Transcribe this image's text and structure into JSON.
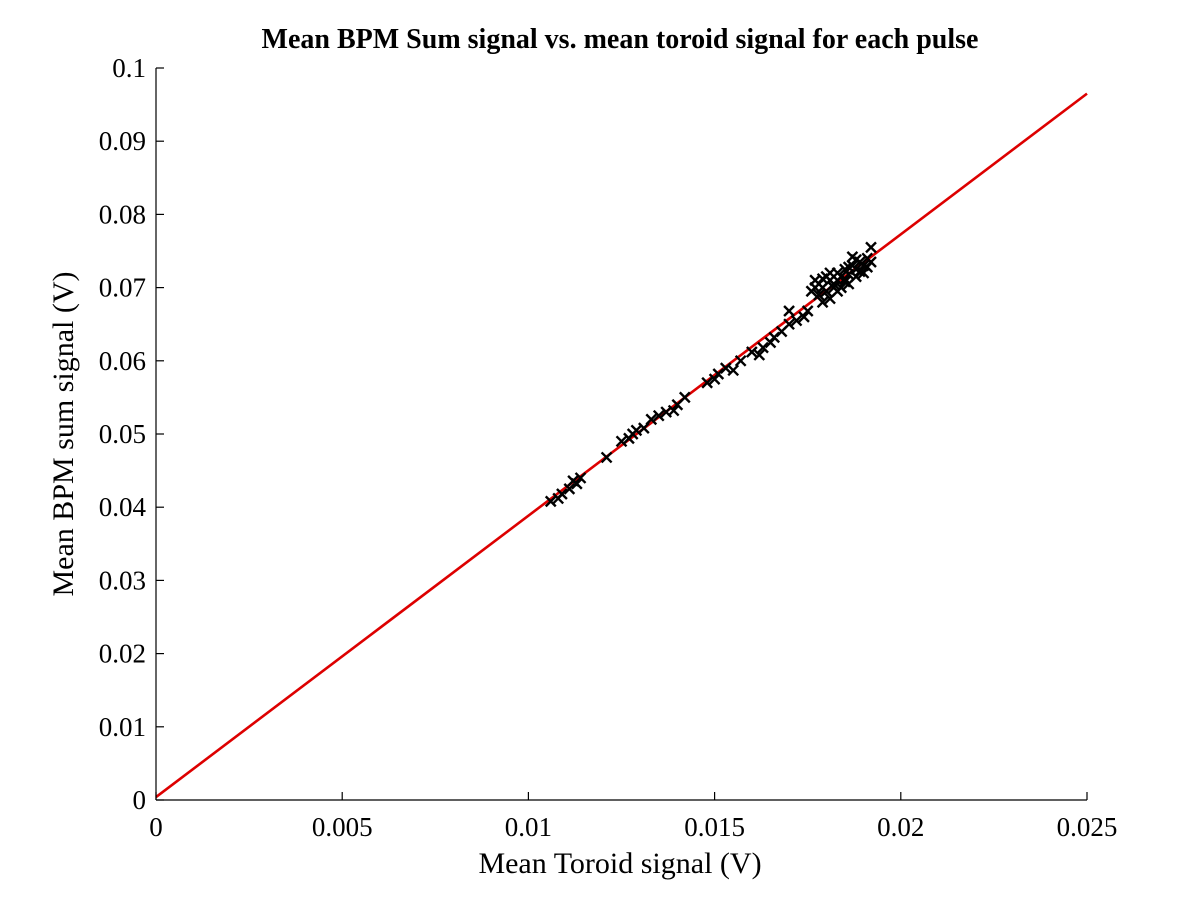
{
  "chart_data": {
    "type": "scatter",
    "title": "Mean BPM Sum signal vs. mean toroid signal for each pulse",
    "xlabel": "Mean Toroid signal (V)",
    "ylabel": "Mean BPM sum signal (V)",
    "xlim": [
      0,
      0.025
    ],
    "ylim": [
      0,
      0.1
    ],
    "xticks": [
      0,
      0.005,
      0.01,
      0.015,
      0.02,
      0.025
    ],
    "xtick_labels": [
      "0",
      "0.005",
      "0.01",
      "0.015",
      "0.02",
      "0.025"
    ],
    "yticks": [
      0,
      0.01,
      0.02,
      0.03,
      0.04,
      0.05,
      0.06,
      0.07,
      0.08,
      0.09,
      0.1
    ],
    "ytick_labels": [
      "0",
      "0.01",
      "0.02",
      "0.03",
      "0.04",
      "0.05",
      "0.06",
      "0.07",
      "0.08",
      "0.09",
      "0.1"
    ],
    "grid": false,
    "marker": "x",
    "colors": {
      "points": "#000000",
      "fit_line": "#dd0000",
      "axes": "#000000"
    },
    "series": [
      {
        "type": "scatter",
        "points": [
          [
            0.0106,
            0.0408
          ],
          [
            0.0108,
            0.0412
          ],
          [
            0.0109,
            0.0418
          ],
          [
            0.0111,
            0.0425
          ],
          [
            0.0113,
            0.0432
          ],
          [
            0.0114,
            0.044
          ],
          [
            0.0112,
            0.0436
          ],
          [
            0.0121,
            0.0468
          ],
          [
            0.0125,
            0.049
          ],
          [
            0.0127,
            0.0494
          ],
          [
            0.0128,
            0.05
          ],
          [
            0.0129,
            0.0505
          ],
          [
            0.0131,
            0.0508
          ],
          [
            0.0133,
            0.052
          ],
          [
            0.0135,
            0.0525
          ],
          [
            0.0137,
            0.053
          ],
          [
            0.0139,
            0.0532
          ],
          [
            0.014,
            0.054
          ],
          [
            0.0142,
            0.055
          ],
          [
            0.0148,
            0.057
          ],
          [
            0.015,
            0.0575
          ],
          [
            0.0151,
            0.0582
          ],
          [
            0.0153,
            0.059
          ],
          [
            0.0155,
            0.0587
          ],
          [
            0.0157,
            0.06
          ],
          [
            0.016,
            0.0612
          ],
          [
            0.0162,
            0.0608
          ],
          [
            0.0163,
            0.0618
          ],
          [
            0.0165,
            0.0625
          ],
          [
            0.0166,
            0.0632
          ],
          [
            0.0168,
            0.064
          ],
          [
            0.017,
            0.065
          ],
          [
            0.017,
            0.0668
          ],
          [
            0.0172,
            0.0655
          ],
          [
            0.0174,
            0.066
          ],
          [
            0.0175,
            0.0668
          ],
          [
            0.0176,
            0.0695
          ],
          [
            0.0177,
            0.07
          ],
          [
            0.0177,
            0.071
          ],
          [
            0.0178,
            0.069
          ],
          [
            0.0178,
            0.0705
          ],
          [
            0.0179,
            0.068
          ],
          [
            0.0179,
            0.07
          ],
          [
            0.018,
            0.0715
          ],
          [
            0.018,
            0.0695
          ],
          [
            0.0181,
            0.071
          ],
          [
            0.0181,
            0.0685
          ],
          [
            0.0182,
            0.07
          ],
          [
            0.0182,
            0.0705
          ],
          [
            0.0183,
            0.071
          ],
          [
            0.0183,
            0.072
          ],
          [
            0.0184,
            0.07
          ],
          [
            0.0184,
            0.0715
          ],
          [
            0.0185,
            0.0712
          ],
          [
            0.0185,
            0.0725
          ],
          [
            0.0186,
            0.0718
          ],
          [
            0.0186,
            0.0705
          ],
          [
            0.0187,
            0.073
          ],
          [
            0.0187,
            0.0742
          ],
          [
            0.0188,
            0.0715
          ],
          [
            0.0188,
            0.0725
          ],
          [
            0.0189,
            0.0722
          ],
          [
            0.0189,
            0.0735
          ],
          [
            0.019,
            0.073
          ],
          [
            0.019,
            0.072
          ],
          [
            0.0191,
            0.0728
          ],
          [
            0.0191,
            0.074
          ],
          [
            0.0192,
            0.0735
          ],
          [
            0.0192,
            0.0755
          ],
          [
            0.0183,
            0.0695
          ],
          [
            0.0181,
            0.072
          ],
          [
            0.0185,
            0.0708
          ],
          [
            0.0188,
            0.0738
          ],
          [
            0.0179,
            0.0712
          ],
          [
            0.0186,
            0.0728
          ]
        ]
      },
      {
        "type": "line",
        "points": [
          [
            0,
            0.0004
          ],
          [
            0.025,
            0.0965
          ]
        ]
      }
    ]
  }
}
